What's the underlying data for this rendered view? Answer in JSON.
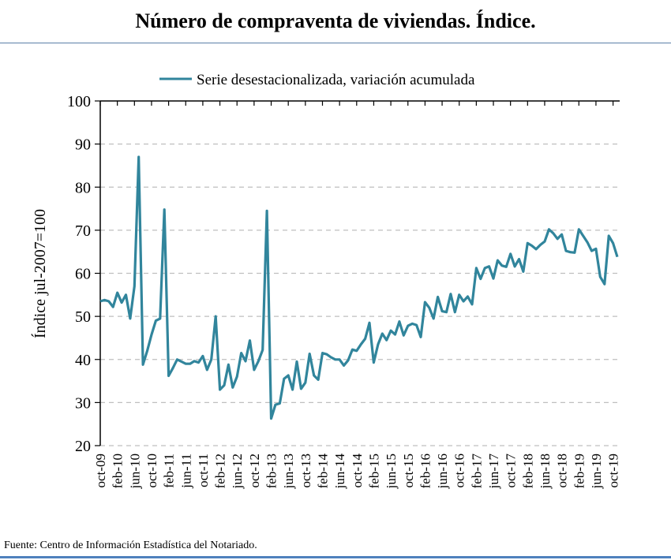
{
  "header": {
    "title": "Número de compraventa de viviendas. Índice."
  },
  "footer": {
    "source": "Fuente: Centro de Información Estadística del Notariado."
  },
  "colors": {
    "series": "#31859c",
    "grid": "#bfbfbf",
    "rule": "#4f81bd"
  },
  "chart_data": {
    "type": "line",
    "title": "Número de compraventa de viviendas. Índice.",
    "xlabel": "",
    "ylabel": "Índice jul-2007=100",
    "ylim": [
      20,
      100
    ],
    "yticks": [
      20,
      30,
      40,
      50,
      60,
      70,
      80,
      90,
      100
    ],
    "grid": true,
    "legend_position": "top-center",
    "x_tick_labels": [
      "oct-09",
      "feb-10",
      "jun-10",
      "oct-10",
      "feb-11",
      "jun-11",
      "oct-11",
      "feb-12",
      "jun-12",
      "oct-12",
      "feb-13",
      "jun-13",
      "oct-13",
      "feb-14",
      "jun-14",
      "oct-14",
      "feb-15",
      "jun-15",
      "oct-15",
      "feb-16",
      "jun-16",
      "oct-16",
      "feb-17",
      "jun-17",
      "oct-17",
      "feb-18",
      "jun-18",
      "oct-18",
      "feb-19",
      "jun-19",
      "oct-19"
    ],
    "x_tick_step_months": 4,
    "series": [
      {
        "name": "Serie desestacionalizada, variación acumulada",
        "start": "oct-09",
        "frequency": "monthly",
        "values": [
          53.5,
          53.8,
          53.5,
          52.2,
          55.5,
          53.2,
          55.0,
          49.5,
          57.0,
          87.0,
          38.8,
          42.0,
          45.8,
          49.0,
          49.5,
          74.8,
          36.2,
          38.0,
          40.0,
          39.5,
          39.0,
          39.0,
          39.6,
          39.3,
          40.8,
          37.6,
          40.0,
          50.0,
          33.0,
          34.0,
          38.8,
          33.5,
          36.0,
          41.5,
          39.6,
          44.4,
          37.6,
          39.6,
          42.2,
          74.5,
          26.3,
          29.5,
          29.8,
          35.5,
          36.3,
          33.0,
          39.5,
          33.2,
          34.6,
          41.3,
          36.3,
          35.3,
          41.5,
          41.2,
          40.5,
          40.0,
          40.0,
          38.6,
          39.8,
          42.3,
          42.0,
          43.5,
          44.8,
          48.5,
          39.3,
          43.5,
          46.0,
          44.5,
          46.7,
          45.8,
          48.8,
          45.6,
          47.8,
          48.3,
          48.0,
          45.2,
          53.3,
          52.0,
          49.5,
          54.5,
          51.2,
          51.0,
          55.2,
          51.0,
          55.0,
          53.5,
          54.6,
          52.8,
          61.2,
          58.7,
          61.2,
          61.6,
          58.8,
          63.0,
          61.8,
          61.5,
          64.5,
          61.6,
          63.3,
          60.4,
          67.0,
          66.4,
          65.6,
          66.6,
          67.4,
          70.2,
          69.3,
          68.0,
          69.0,
          65.2,
          64.9,
          64.8,
          70.2,
          68.7,
          67.2,
          65.2,
          65.7,
          59.2,
          57.5,
          68.7,
          67.0,
          63.8
        ]
      }
    ]
  }
}
